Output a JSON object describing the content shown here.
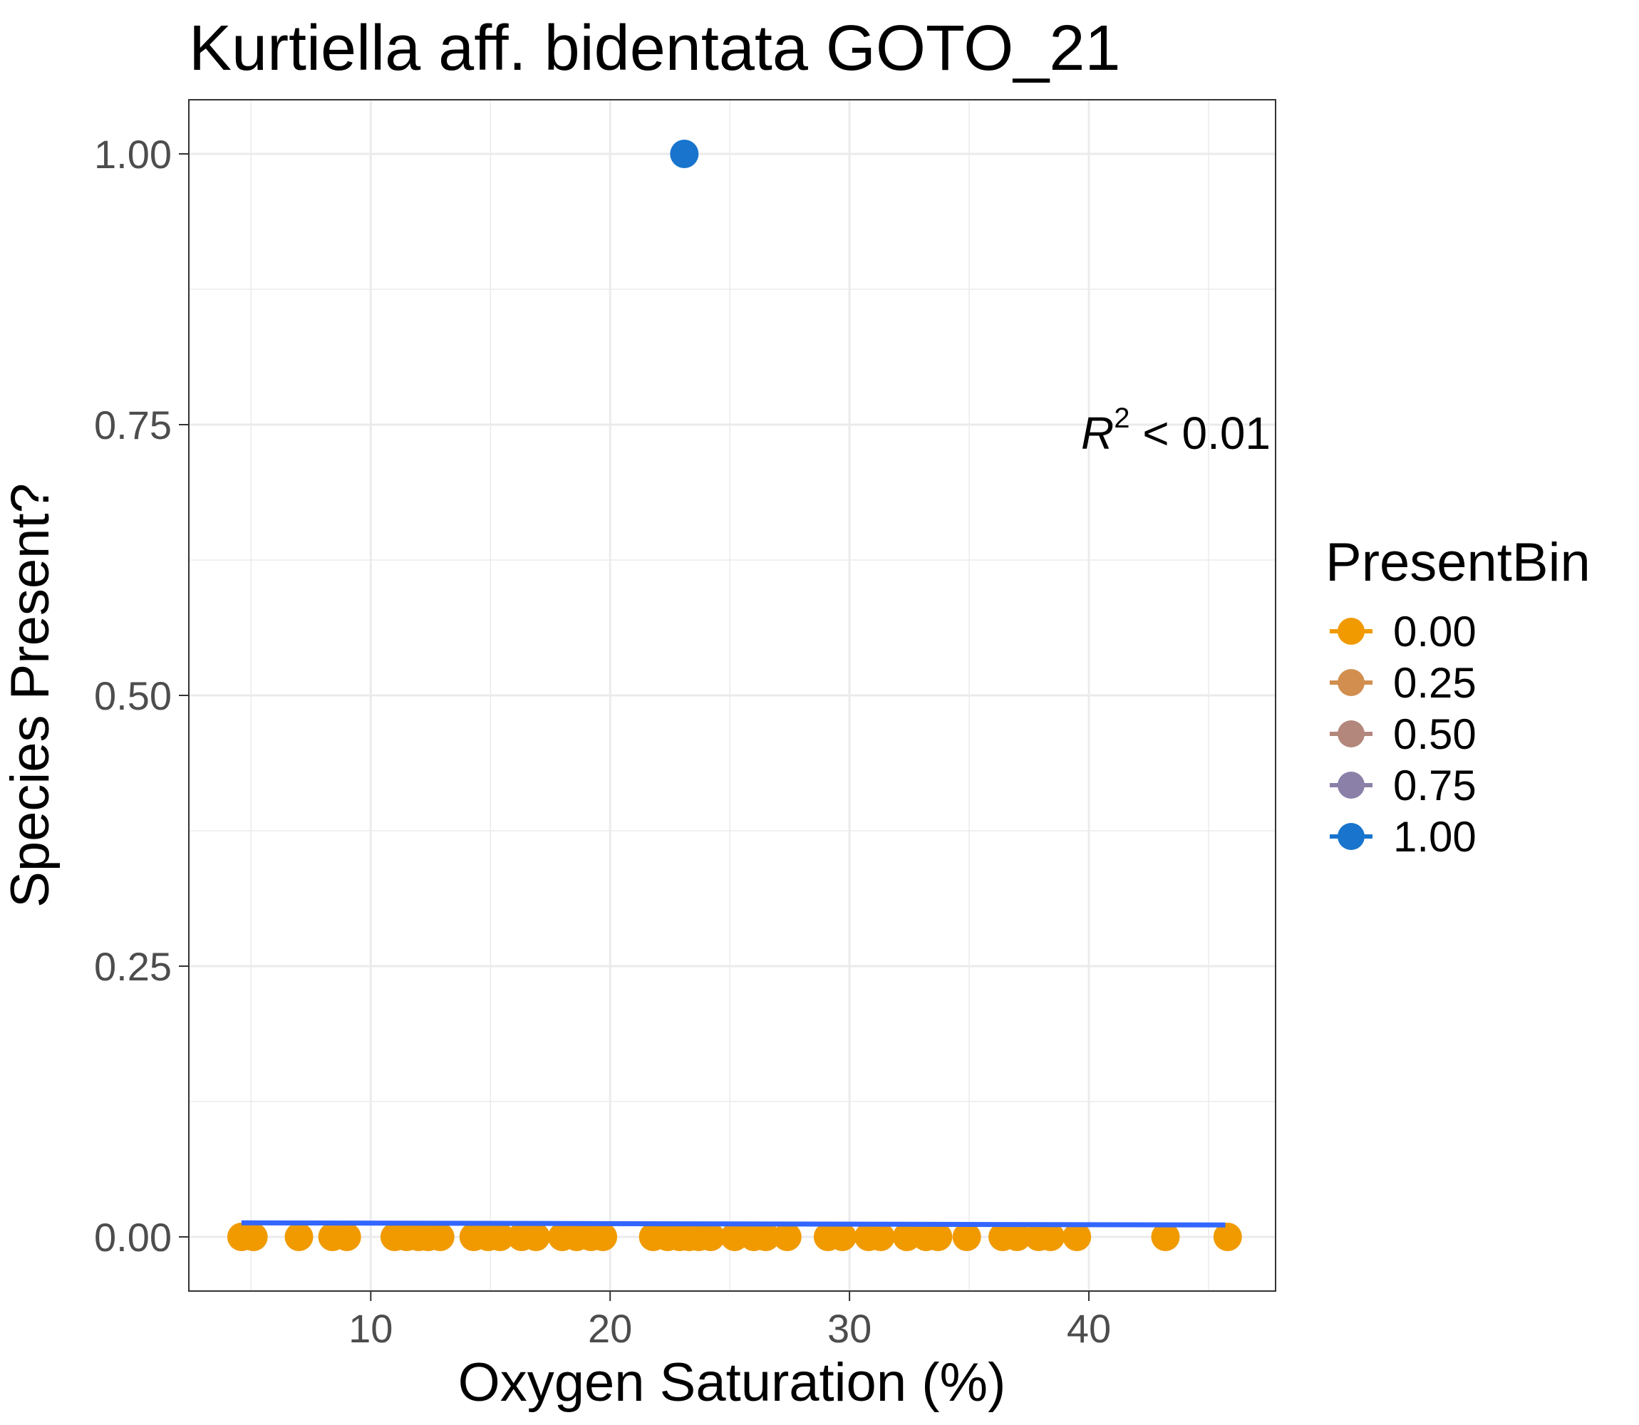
{
  "chart_data": {
    "type": "scatter",
    "title": "Kurtiella aff. bidentata GOTO_21",
    "xlabel": "Oxygen Saturation (%)",
    "ylabel": "Species Present?",
    "xlim": [
      2.4,
      47.8
    ],
    "ylim": [
      -0.05,
      1.05
    ],
    "x_ticks": [
      10,
      20,
      30,
      40
    ],
    "x_tick_labels": [
      "10",
      "20",
      "30",
      "40"
    ],
    "y_ticks": [
      0,
      0.25,
      0.5,
      0.75,
      1
    ],
    "y_tick_labels": [
      "0.00",
      "0.25",
      "0.50",
      "0.75",
      "1.00"
    ],
    "grid": true,
    "annotation": {
      "r_symbol": "R",
      "exponent": "2",
      "relation": " < 0.01"
    },
    "legend": {
      "title": "PresentBin",
      "position": "right",
      "entries": [
        {
          "label": "0.00",
          "color": "#f09a00"
        },
        {
          "label": "0.25",
          "color": "#d18e4f"
        },
        {
          "label": "0.50",
          "color": "#b3877c"
        },
        {
          "label": "0.75",
          "color": "#8a80a8"
        },
        {
          "label": "1.00",
          "color": "#1874cd"
        }
      ]
    },
    "fit_line": {
      "color": "#3366ff",
      "x": [
        4.6,
        45.7
      ],
      "y": [
        0.013,
        0.011
      ]
    },
    "series": [
      {
        "values": [
          {
            "x": 4.6,
            "y": 0
          },
          {
            "x": 5.1,
            "y": 0
          },
          {
            "x": 7.0,
            "y": 0
          },
          {
            "x": 8.4,
            "y": 0
          },
          {
            "x": 9.0,
            "y": 0
          },
          {
            "x": 11.0,
            "y": 0
          },
          {
            "x": 11.5,
            "y": 0
          },
          {
            "x": 12.0,
            "y": 0
          },
          {
            "x": 12.4,
            "y": 0
          },
          {
            "x": 12.9,
            "y": 0
          },
          {
            "x": 14.3,
            "y": 0
          },
          {
            "x": 14.9,
            "y": 0
          },
          {
            "x": 15.4,
            "y": 0
          },
          {
            "x": 16.3,
            "y": 0
          },
          {
            "x": 16.9,
            "y": 0
          },
          {
            "x": 18.0,
            "y": 0
          },
          {
            "x": 18.6,
            "y": 0
          },
          {
            "x": 19.2,
            "y": 0
          },
          {
            "x": 19.7,
            "y": 0
          },
          {
            "x": 21.8,
            "y": 0
          },
          {
            "x": 22.4,
            "y": 0
          },
          {
            "x": 22.9,
            "y": 0
          },
          {
            "x": 23.3,
            "y": 0
          },
          {
            "x": 23.7,
            "y": 0
          },
          {
            "x": 24.2,
            "y": 0
          },
          {
            "x": 25.2,
            "y": 0
          },
          {
            "x": 26.0,
            "y": 0
          },
          {
            "x": 26.5,
            "y": 0
          },
          {
            "x": 27.4,
            "y": 0
          },
          {
            "x": 29.1,
            "y": 0
          },
          {
            "x": 29.7,
            "y": 0
          },
          {
            "x": 30.8,
            "y": 0
          },
          {
            "x": 31.3,
            "y": 0
          },
          {
            "x": 32.4,
            "y": 0
          },
          {
            "x": 33.2,
            "y": 0
          },
          {
            "x": 33.7,
            "y": 0
          },
          {
            "x": 34.9,
            "y": 0
          },
          {
            "x": 36.4,
            "y": 0
          },
          {
            "x": 37.0,
            "y": 0
          },
          {
            "x": 37.9,
            "y": 0
          },
          {
            "x": 38.4,
            "y": 0
          },
          {
            "x": 39.5,
            "y": 0
          },
          {
            "x": 43.2,
            "y": 0
          },
          {
            "x": 45.8,
            "y": 0
          },
          {
            "x": 23.1,
            "y": 1
          }
        ]
      }
    ]
  }
}
